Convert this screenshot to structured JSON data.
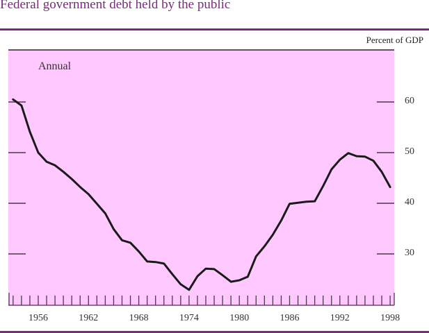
{
  "header": {
    "title": "Federal government debt held by the public",
    "units": "Percent of GDP"
  },
  "annotation": "Annual",
  "colors": {
    "plot_background": "#ffc8ff",
    "title": "#7a2a7a",
    "rule": "#7a2a7a",
    "line": "#1a1a1a"
  },
  "chart_data": {
    "type": "line",
    "title": "Federal government debt held by the public",
    "xlabel": "",
    "ylabel": "Percent of GDP",
    "annotation": "Annual",
    "x_tick_labels": [
      "1956",
      "1962",
      "1968",
      "1974",
      "1980",
      "1986",
      "1992",
      "1998"
    ],
    "y_tick_labels": [
      "30",
      "40",
      "50",
      "60"
    ],
    "ylim": [
      20,
      70
    ],
    "xlim": [
      1952.5,
      1998.5
    ],
    "grid": false,
    "legend": "none",
    "series": [
      {
        "name": "Debt held by the public (% of GDP)",
        "x": [
          1953,
          1954,
          1955,
          1956,
          1957,
          1958,
          1959,
          1960,
          1961,
          1962,
          1963,
          1964,
          1965,
          1966,
          1967,
          1968,
          1969,
          1970,
          1971,
          1972,
          1973,
          1974,
          1975,
          1976,
          1977,
          1978,
          1979,
          1980,
          1981,
          1982,
          1983,
          1984,
          1985,
          1986,
          1987,
          1988,
          1989,
          1990,
          1991,
          1992,
          1993,
          1994,
          1995,
          1996,
          1997,
          1998
        ],
        "values": [
          60.5,
          59.3,
          54.1,
          50.0,
          48.2,
          47.5,
          46.2,
          44.8,
          43.2,
          41.8,
          39.9,
          38.0,
          34.9,
          32.7,
          32.2,
          30.5,
          28.5,
          28.4,
          28.1,
          26.0,
          24.0,
          22.9,
          25.6,
          27.1,
          27.0,
          25.8,
          24.5,
          24.8,
          25.5,
          29.5,
          31.5,
          33.8,
          36.6,
          39.9,
          40.1,
          40.3,
          40.4,
          43.4,
          46.7,
          48.6,
          49.9,
          49.3,
          49.2,
          48.4,
          46.2,
          43.2
        ]
      }
    ]
  }
}
